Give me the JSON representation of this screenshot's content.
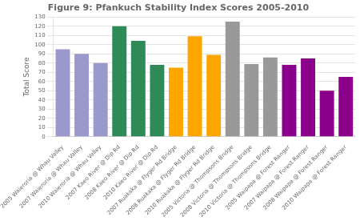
{
  "chart_data": {
    "type": "bar",
    "title": "Figure 9: Pfankuch Stability Index Scores 2005-2010",
    "ylabel": "Total Score",
    "categories": [
      "2005 Waieroria @ Whau Valley",
      "2007 Waieroria @ Whau Valley",
      "2010 Waieroria @ Whau Valley",
      "2007 Kaeo River @ Dip Rd",
      "2008 Kaeo River @ Dip Rd",
      "2010 Kaeo River @ Dip Rd",
      "2007 Ruakaka @ Flyger Rd Bridge",
      "2008 Ruakaka @ Flyger Rd Bridge",
      "2010 Ruakaka @ Flyger Rd Bridge",
      "2005 Victoria @ Thompsons Bridge",
      "2008 Victoria @ Thompsons Bridge",
      "2010 Victoria @ Thompsons Bridge",
      "2005 Waipapa @ Forest Ranger",
      "2007 Waipapa @ Forest Ranger",
      "2008 Waipapa @ Forest Ranger",
      "2010 Waipapa @ Forest Ranger"
    ],
    "values": [
      95,
      90,
      80,
      120,
      104,
      78,
      75,
      109,
      89,
      125,
      79,
      86,
      78,
      85,
      50,
      65
    ],
    "colors": [
      "#9999cc",
      "#9999cc",
      "#9999cc",
      "#2e8b57",
      "#2e8b57",
      "#2e8b57",
      "#ffa500",
      "#ffa500",
      "#ffa500",
      "#999999",
      "#999999",
      "#999999",
      "#8b008b",
      "#8b008b",
      "#8b008b",
      "#8b008b"
    ],
    "ylim": [
      0,
      130
    ],
    "yticks": [
      0,
      10,
      20,
      30,
      40,
      50,
      60,
      70,
      80,
      90,
      100,
      110,
      120,
      130
    ],
    "grid": true
  }
}
